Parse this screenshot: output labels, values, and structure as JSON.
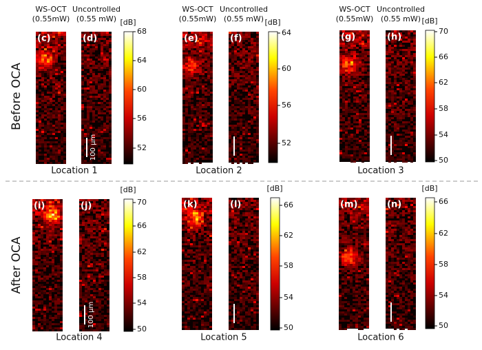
{
  "before_label": "Before OCA",
  "after_label": "After OCA",
  "groups": [
    {
      "ws_header": "WS-OCT",
      "ws_power": "(0.55mW)",
      "unc_header": "Uncontrolled",
      "unc_power": "(0.55 mW)",
      "panels": [
        "(c)",
        "(d)"
      ],
      "unit": "[dB]",
      "ticks": [
        68,
        64,
        60,
        56,
        52
      ],
      "location": "Location 1",
      "scale_bar": "100 μm"
    },
    {
      "ws_header": "WS-OCT",
      "ws_power": "(0.55mW)",
      "unc_header": "Uncontrolled",
      "unc_power": "(0.55 mW)",
      "panels": [
        "(e)",
        "(f)"
      ],
      "unit": "[dB]",
      "ticks": [
        64,
        60,
        56,
        52
      ],
      "location": "Location 2"
    },
    {
      "ws_header": "WS-OCT",
      "ws_power": "(0.55mW)",
      "unc_header": "Uncontrolled",
      "unc_power": "(0.55 mW)",
      "panels": [
        "(g)",
        "(h)"
      ],
      "unit": "[dB]",
      "ticks": [
        70,
        66,
        62,
        58,
        54,
        50
      ],
      "location": "Location 3"
    },
    {
      "panels": [
        "(i)",
        "(j)"
      ],
      "unit": "[dB]",
      "ticks": [
        70,
        66,
        62,
        58,
        54,
        50
      ],
      "location": "Location 4",
      "scale_bar": "100 μm"
    },
    {
      "panels": [
        "(k)",
        "(l)"
      ],
      "unit": "[dB]",
      "ticks": [
        66,
        62,
        58,
        54,
        50
      ],
      "location": "Location 5"
    },
    {
      "panels": [
        "(m)",
        "(n)"
      ],
      "unit": "[dB]",
      "ticks": [
        66,
        62,
        58,
        54,
        50
      ],
      "location": "Location 6"
    }
  ]
}
